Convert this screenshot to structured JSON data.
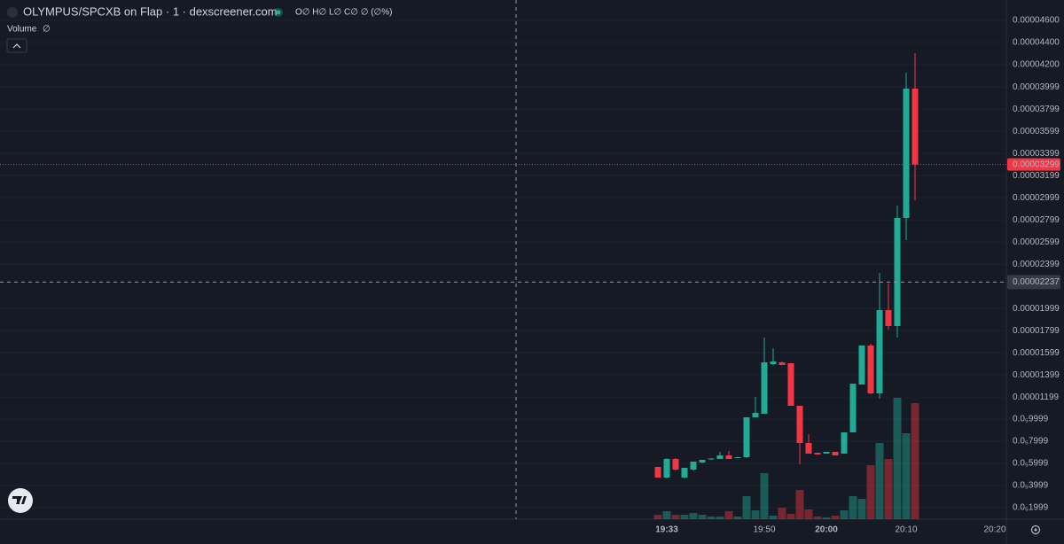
{
  "chart_data": {
    "type": "candlestick",
    "title": "OLYMPUS/SPCXB on Flap · 1 · dexscreener.com",
    "ohlc_legend": "O∅ H∅ L∅ C∅ ∅ (∅%)",
    "up_color": "#22ab94",
    "down_color": "#f23645",
    "categories": [
      null,
      "19:33",
      null,
      null,
      null,
      null,
      null,
      null,
      null,
      null,
      null,
      null,
      "19:50",
      null,
      null,
      null,
      null,
      null,
      null,
      "20:00",
      null,
      null,
      null,
      null,
      null,
      null,
      null,
      null,
      "20:10",
      null,
      null,
      null,
      null,
      null,
      null,
      null,
      null,
      null,
      "20:20"
    ],
    "open": [
      5.68e-06,
      4.72e-06,
      6.4e-06,
      4.72e-06,
      5.44e-06,
      6.08e-06,
      6.4e-06,
      6.4e-06,
      6.72e-06,
      6.52e-06,
      6.56e-06,
      1.016e-05,
      1.048e-05,
      1.496e-05,
      1.512e-05,
      1.504e-05,
      1.12e-05,
      7.84e-06,
      6.96e-06,
      6.88e-06,
      7.04e-06,
      6.88e-06,
      8.8e-06,
      1.312e-05,
      1.664e-05,
      1.232e-05,
      1.984e-05,
      1.84e-05,
      2.816e-05,
      3.984e-05,
      null,
      null,
      null,
      null,
      null,
      null,
      null,
      null,
      null
    ],
    "high": [
      5.68e-06,
      6.48e-06,
      6.48e-06,
      5.6e-06,
      6.16e-06,
      6.32e-06,
      6.48e-06,
      7.04e-06,
      7.12e-06,
      6.6e-06,
      1.016e-05,
      1.2e-05,
      1.736e-05,
      1.64e-05,
      1.52e-05,
      1.504e-05,
      1.12e-05,
      8.64e-06,
      6.96e-06,
      7.04e-06,
      7.04e-06,
      8.8e-06,
      1.32e-05,
      1.664e-05,
      1.68e-05,
      2.32e-05,
      2.224e-05,
      2.928e-05,
      4.128e-05,
      4.304e-05,
      null,
      null,
      null,
      null,
      null,
      null,
      null,
      null,
      null
    ],
    "low": [
      4.72e-06,
      4.64e-06,
      5.36e-06,
      4.64e-06,
      5.36e-06,
      6e-06,
      6.32e-06,
      6.4e-06,
      6.4e-06,
      6.48e-06,
      6.48e-06,
      1.016e-05,
      1.048e-05,
      1.488e-05,
      1.488e-05,
      1.12e-05,
      5.92e-06,
      6.88e-06,
      6.8e-06,
      6.88e-06,
      6.72e-06,
      6.88e-06,
      8.8e-06,
      1.312e-05,
      1.224e-05,
      1.184e-05,
      1.808e-05,
      1.736e-05,
      2.616e-05,
      2.976e-05,
      null,
      null,
      null,
      null,
      null,
      null,
      null,
      null,
      null
    ],
    "close": [
      4.72e-06,
      6.4e-06,
      5.44e-06,
      5.6e-06,
      6.16e-06,
      6.32e-06,
      6.44e-06,
      6.72e-06,
      6.4e-06,
      6.56e-06,
      1.016e-05,
      1.056e-05,
      1.512e-05,
      1.52e-05,
      1.488e-05,
      1.12e-05,
      7.84e-06,
      6.88e-06,
      6.8e-06,
      7.04e-06,
      6.72e-06,
      8.8e-06,
      1.32e-05,
      1.664e-05,
      1.232e-05,
      1.984e-05,
      1.84e-05,
      2.816e-05,
      3.984e-05,
      3.299e-05,
      null,
      null,
      null,
      null,
      null,
      null,
      null,
      null,
      null
    ],
    "volume": {
      "name": "Volume",
      "value_label": "∅",
      "values": [
        5,
        9,
        5,
        5,
        7,
        5,
        3,
        3,
        9,
        3,
        26,
        10,
        52,
        4,
        13,
        6,
        33,
        11,
        3,
        2,
        4,
        10,
        26,
        23,
        61,
        86,
        68,
        137,
        97,
        131,
        null,
        null,
        null,
        null,
        null,
        null,
        null,
        null,
        null
      ]
    },
    "ylim": [
      9.6e-07,
      4.784e-05
    ],
    "yticks": [
      {
        "value": 4.6e-05,
        "label": "0.00004600"
      },
      {
        "value": 4.4e-05,
        "label": "0.00004400"
      },
      {
        "value": 4.2e-05,
        "label": "0.00004200"
      },
      3.999e-05,
      3.799e-05,
      3.599e-05,
      3.399e-05,
      3.199e-05,
      2.999e-05,
      2.799e-05,
      2.599e-05,
      2.399e-05,
      1.999e-05,
      1.799e-05,
      1.599e-05,
      1.399e-05,
      1.199e-05,
      {
        "value": 9.999e-06,
        "label": "0.0₅9999"
      },
      {
        "value": 7.999e-06,
        "label": "0.0₅7999"
      },
      {
        "value": 5.999e-06,
        "label": "0.0₅5999"
      },
      {
        "value": 3.999e-06,
        "label": "0.0₅3999"
      },
      {
        "value": 1.999e-06,
        "label": "0.0₅1999"
      }
    ],
    "last_price": 3.299e-05,
    "crosshair_price": 2.237e-05,
    "grid": true
  }
}
